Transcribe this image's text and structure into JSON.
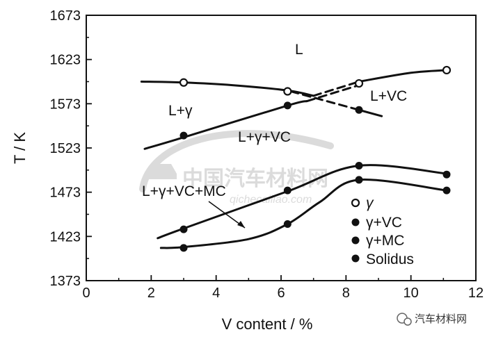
{
  "chart_data": {
    "type": "line",
    "xlabel": "V content / %",
    "ylabel": "T / K",
    "xlim": [
      0,
      12
    ],
    "ylim": [
      1373,
      1673
    ],
    "x_ticks": [
      "0",
      "2",
      "4",
      "6",
      "8",
      "10",
      "12"
    ],
    "y_ticks": [
      "1373",
      "1423",
      "1473",
      "1523",
      "1573",
      "1623",
      "1673"
    ],
    "grid": false,
    "legend_position": "bottom-right",
    "regions": [
      "L",
      "L+γ",
      "L+VC",
      "L+γ+VC",
      "L+γ+VC+MC"
    ],
    "series": [
      {
        "name": "γ",
        "marker": "open-circle",
        "line": [
          [
            1.7,
            1598
          ],
          [
            3,
            1597
          ],
          [
            4.5,
            1594
          ],
          [
            6.2,
            1588
          ],
          [
            7,
            1582
          ]
        ],
        "line_dashed": [
          [
            7,
            1582
          ],
          [
            8.4,
            1598
          ]
        ],
        "line_end": [
          [
            8.4,
            1598
          ],
          [
            10,
            1608
          ],
          [
            11.1,
            1611
          ]
        ],
        "points": [
          [
            3,
            1597
          ],
          [
            6.2,
            1587
          ],
          [
            8.4,
            1596
          ],
          [
            11.1,
            1611
          ]
        ]
      },
      {
        "name": "γ+VC",
        "marker": "filled-circle",
        "line": [
          [
            1.8,
            1522
          ],
          [
            3,
            1535
          ],
          [
            6.2,
            1571
          ],
          [
            6.8,
            1576
          ]
        ],
        "line_dashed": [
          [
            6.8,
            1576
          ],
          [
            8.4,
            1594
          ]
        ],
        "points": [
          [
            3,
            1537
          ],
          [
            6.2,
            1571
          ],
          [
            8.4,
            1566
          ]
        ]
      },
      {
        "name": "",
        "line_dashed": [
          [
            6.3,
            1587
          ],
          [
            8.4,
            1566
          ]
        ],
        "line": [
          [
            8.4,
            1566
          ],
          [
            9.1,
            1559
          ]
        ]
      },
      {
        "name": "γ+MC",
        "marker": "filled-circle",
        "line": [
          [
            2.2,
            1421
          ],
          [
            3,
            1432
          ],
          [
            6.2,
            1474
          ],
          [
            8.4,
            1503
          ],
          [
            11.1,
            1494
          ]
        ],
        "points": [
          [
            3,
            1431
          ],
          [
            6.2,
            1475
          ],
          [
            8.4,
            1503
          ],
          [
            11.1,
            1493
          ]
        ]
      },
      {
        "name": "Solidus",
        "marker": "filled-circle",
        "line": [
          [
            2.3,
            1410
          ],
          [
            3,
            1411
          ],
          [
            5,
            1420
          ],
          [
            6.2,
            1437
          ],
          [
            7.2,
            1462
          ],
          [
            8.4,
            1487
          ],
          [
            11.1,
            1475
          ]
        ],
        "points": [
          [
            3,
            1410
          ],
          [
            6.2,
            1437
          ],
          [
            8.4,
            1487
          ],
          [
            11.1,
            1475
          ]
        ]
      }
    ]
  },
  "labels": {
    "l": "L",
    "l_gamma": "L+γ",
    "l_vc": "L+VC",
    "l_gamma_vc": "L+γ+VC",
    "l_gamma_vc_mc": "L+γ+VC+MC"
  },
  "legend": [
    {
      "marker": "open-circle",
      "label": "γ"
    },
    {
      "marker": "filled-circle",
      "label": "γ+VC"
    },
    {
      "marker": "filled-circle",
      "label": "γ+MC"
    },
    {
      "marker": "filled-circle",
      "label": "Solidus"
    }
  ],
  "watermark": {
    "logo_text": "中国汽车材料网",
    "url_text": "qichecailiao.com",
    "footer_text": "汽车材料网"
  }
}
